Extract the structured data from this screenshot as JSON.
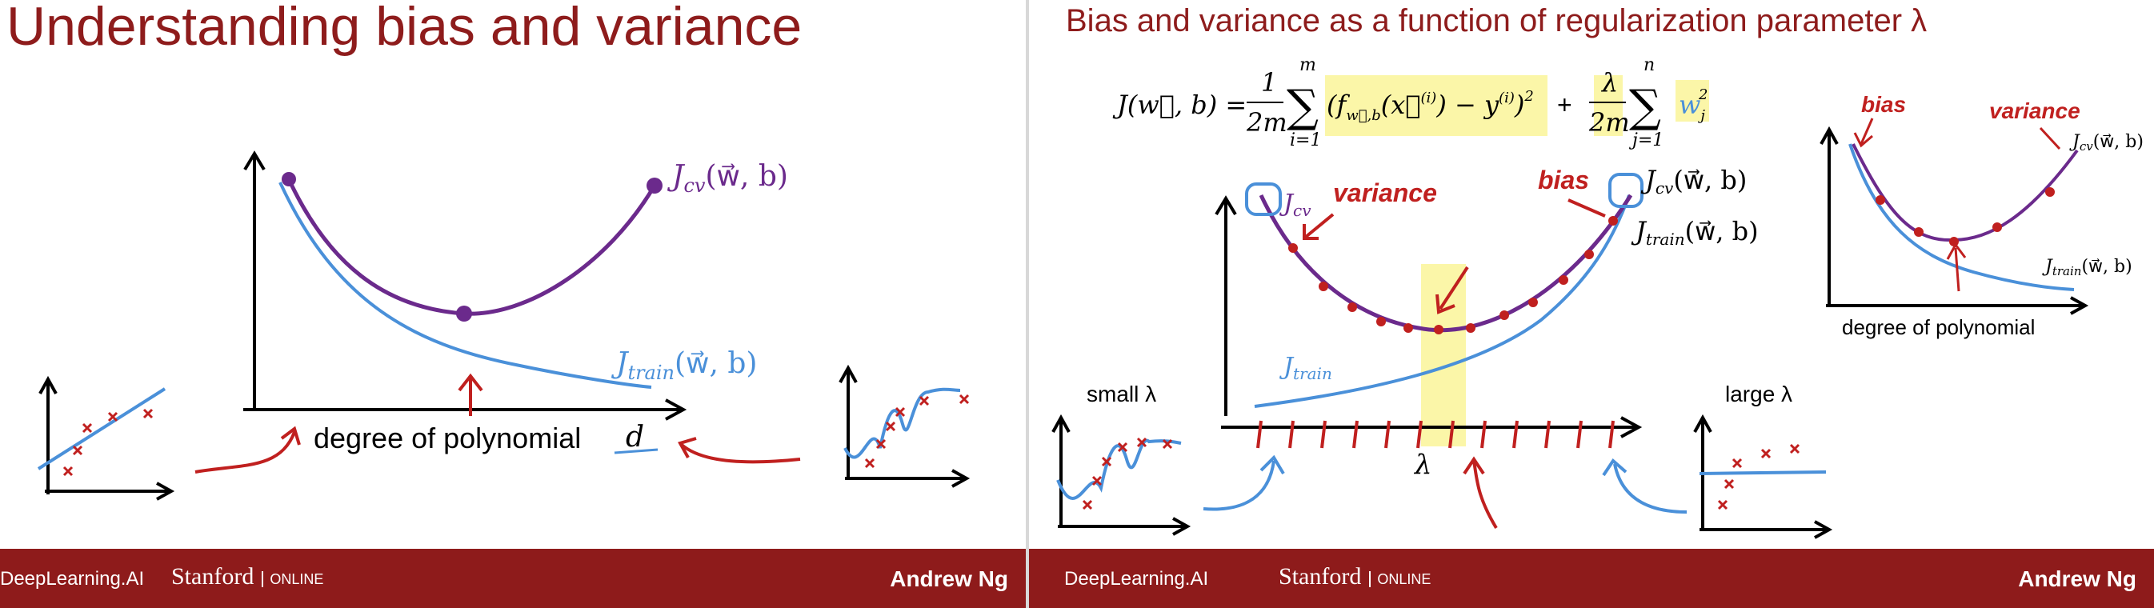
{
  "left": {
    "title": "Understanding bias and variance",
    "jcv_label": "J",
    "jcv_sub": "cv",
    "jcv_args": "(w⃗, b)",
    "jtrain_label": "J",
    "jtrain_sub": "train",
    "jtrain_args": "(w⃗, b)",
    "xaxis_label": "degree of polynomial",
    "xaxis_var": "d"
  },
  "right": {
    "title": "Bias and variance as a function of regularization parameter λ",
    "formula": {
      "lhs": "J(w⃗, b) =",
      "frac1_num": "1",
      "frac1_den": "2m",
      "sum1_top": "m",
      "sum1_bottom": "i=1",
      "term1": "(f",
      "term1_sub": "w⃗,b",
      "term1_rest": "(x⃗",
      "term1_sup_i": "(i)",
      "term1_minus": ") − y",
      "term1_close": ")",
      "term1_sq": "2",
      "plus": "+",
      "frac2_num": "λ",
      "frac2_den": "2m",
      "sum2_top": "n",
      "sum2_bottom": "j=1",
      "term2": "w",
      "term2_sub": "j",
      "term2_sup": "2"
    },
    "jcv_label": "J",
    "jcv_sub": "cv",
    "variance_label": "variance",
    "bias_label": "bias",
    "jcv_right": "J",
    "jcv_right_sub": "cv",
    "jcv_right_args": "(w⃗, b)",
    "jtrain_right": "J",
    "jtrain_right_sub": "train",
    "jtrain_right_args": "(w⃗, b)",
    "jtrain_label": "J",
    "jtrain_sub": "train",
    "lambda_axis": "λ",
    "small_lambda": "small λ",
    "large_lambda": "large λ",
    "inset": {
      "bias_label": "bias",
      "variance_label": "variance",
      "jcv": "J",
      "jcv_sub": "cv",
      "jcv_args": "(w⃗, b)",
      "jtrain": "J",
      "jtrain_sub": "train",
      "jtrain_args": "(w⃗, b)",
      "xaxis_label": "degree of polynomial"
    }
  },
  "footer": {
    "deeplearning": "DeepLearning.AI",
    "stanford": "Stanford",
    "online": "ONLINE",
    "author": "Andrew Ng"
  },
  "colors": {
    "title": "#8e1c1c",
    "footer": "#8e1b1b",
    "purple": "#6b2a8c",
    "blue": "#4a90d9",
    "red": "#c0201f",
    "highlight": "#fbf6a8"
  }
}
